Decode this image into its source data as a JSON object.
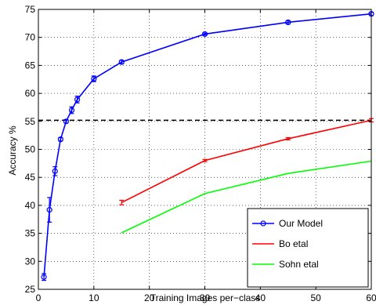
{
  "chart_data": {
    "type": "line",
    "title": "",
    "xlabel": "Training Images per−class",
    "ylabel": "Accuracy %",
    "xlim": [
      0,
      60
    ],
    "ylim": [
      25,
      75
    ],
    "xticks": [
      0,
      10,
      20,
      30,
      40,
      50,
      60
    ],
    "xtick_labels": [
      "0",
      "10",
      "20",
      "30",
      "40",
      "50",
      "60"
    ],
    "yticks": [
      25,
      30,
      35,
      40,
      45,
      50,
      55,
      60,
      65,
      70,
      75
    ],
    "ytick_labels": [
      "25",
      "30",
      "35",
      "40",
      "45",
      "50",
      "55",
      "60",
      "65",
      "70",
      "75"
    ],
    "grid": true,
    "grid_style": "dotted",
    "legend_position": "bottom-right",
    "reference_line": {
      "y": 55.2,
      "style": "dashed",
      "color": "#000000"
    },
    "series": [
      {
        "name": "Our Model",
        "color": "#0000ff",
        "marker": "circle",
        "x": [
          1,
          2,
          3,
          4,
          5,
          6,
          7,
          10,
          15,
          30,
          45,
          60
        ],
        "y": [
          27.2,
          39.2,
          46.1,
          51.8,
          55.0,
          57.0,
          58.9,
          62.6,
          65.6,
          70.6,
          72.7,
          74.2
        ],
        "err": [
          0.6,
          2.2,
          0.8,
          0.3,
          0.3,
          0.6,
          0.6,
          0.5,
          0.3,
          0.2,
          0.3,
          0.3
        ]
      },
      {
        "name": "Bo etal",
        "color": "#ff0000",
        "marker": "none",
        "x": [
          15,
          30,
          45,
          60
        ],
        "y": [
          40.5,
          48.0,
          51.9,
          55.2
        ],
        "err": [
          0.4,
          0.2,
          0.2,
          0.3
        ]
      },
      {
        "name": "Sohn etal",
        "color": "#00ff00",
        "marker": "none",
        "x": [
          15,
          30,
          45,
          60
        ],
        "y": [
          35.1,
          42.1,
          45.7,
          47.9
        ],
        "err": [
          0,
          0,
          0,
          0
        ]
      }
    ]
  }
}
